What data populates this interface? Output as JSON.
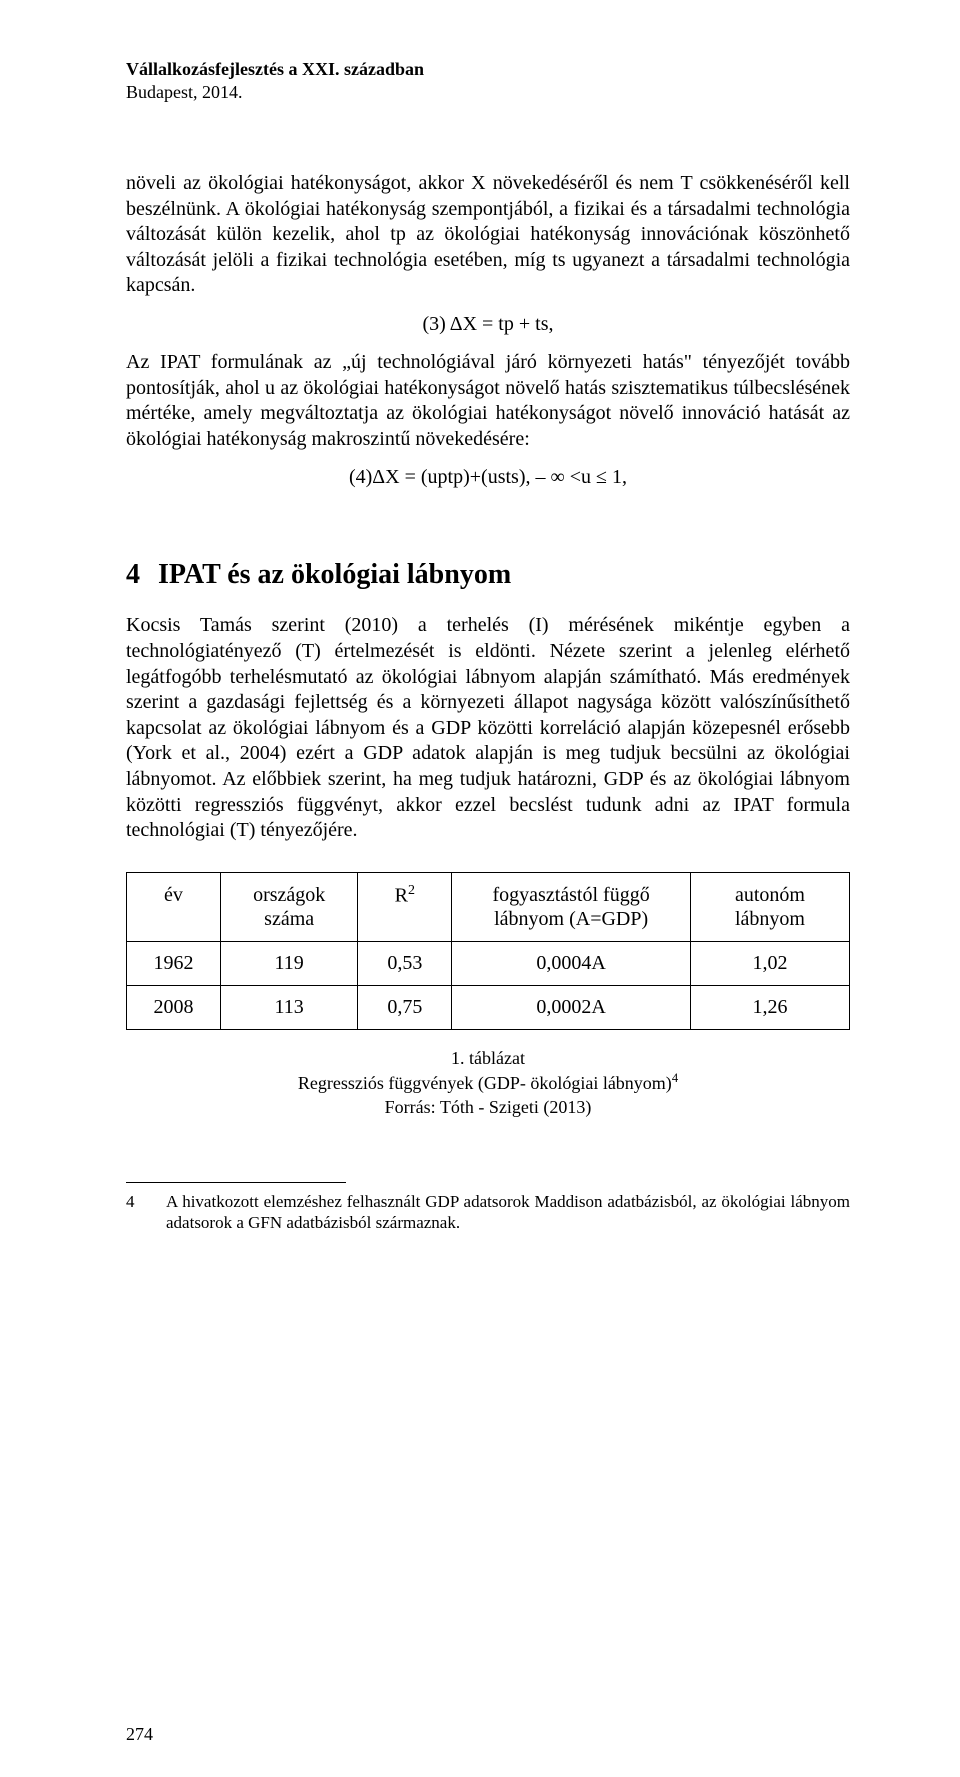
{
  "running_head": {
    "line1": "Vállalkozásfejlesztés a XXI. században",
    "line2": "Budapest, 2014."
  },
  "para1": "növeli az ökológiai hatékonyságot, akkor X növekedéséről és nem T csökkenéséről kell beszélnünk. A ökológiai hatékonyság szempontjából, a fizikai és a társadalmi technológia változását külön kezelik, ahol tp az ökológiai hatékonyság innovációnak köszönhető változását jelöli a fizikai technológia esetében, míg ts ugyanezt a társadalmi technológia kapcsán.",
  "eq3": "(3) ΔX = tp + ts,",
  "para2": "Az IPAT formulának az „új technológiával járó környezeti hatás\" tényezőjét tovább pontosítják, ahol u az ökológiai hatékonyságot növelő hatás szisztematikus túlbecslésének mértéke, amely megváltoztatja az ökológiai hatékonyságot növelő innováció hatását az ökológiai hatékonyság makroszintű növekedésére:",
  "eq4": "(4)ΔX = (uptp)+(usts), – ∞ <u ≤ 1,",
  "section": {
    "num": "4",
    "title": "IPAT és az ökológiai lábnyom"
  },
  "para3": "Kocsis Tamás szerint (2010) a terhelés (I) mérésének mikéntje egyben a technológiatényező (T) értelmezését is eldönti. Nézete szerint a jelenleg elérhető legátfogóbb terhelésmutató az ökológiai lábnyom alapján számítható. Más eredmények szerint a gazdasági fejlettség és a környezeti állapot nagysága között valószínűsíthető kapcsolat az ökológiai lábnyom és a GDP közötti korreláció alapján közepesnél erősebb (York et al., 2004) ezért a GDP adatok alapján is meg tudjuk becsülni az ökológiai lábnyomot. Az előbbiek szerint, ha meg tudjuk határozni, GDP és az ökológiai lábnyom közötti regressziós függvényt, akkor ezzel becslést tudunk adni az IPAT formula technológiai (T) tényezőjére.",
  "table": {
    "headers": {
      "c1": "év",
      "c2": "országok száma",
      "c3_html": "R<sup>2</sup>",
      "c4": "fogyasztástól függő lábnyom (A=GDP)",
      "c5": "autonóm lábnyom"
    },
    "rows": [
      {
        "c1": "1962",
        "c2": "119",
        "c3": "0,53",
        "c4": "0,0004A",
        "c5": "1,02"
      },
      {
        "c1": "2008",
        "c2": "113",
        "c3": "0,75",
        "c4": "0,0002A",
        "c5": "1,26"
      }
    ],
    "col_widths": [
      "13%",
      "19%",
      "13%",
      "33%",
      "22%"
    ]
  },
  "caption": {
    "line1_html": "1. táblázat",
    "line2_html": "Regressziós függvények (GDP- ökológiai lábnyom)<sup>4</sup>",
    "line3": "Forrás: Tóth - Szigeti (2013)"
  },
  "footnote": {
    "num": "4",
    "text": "A hivatkozott elemzéshez felhasznált GDP adatsorok Maddison adatbázisból, az ökológiai lábnyom adatsorok a GFN adatbázisból származnak."
  },
  "pagenum": "274",
  "colors": {
    "text": "#000000",
    "background": "#ffffff",
    "border": "#000000"
  },
  "fonts": {
    "body_family": "Times New Roman",
    "body_size_pt": 12,
    "h2_size_pt": 16,
    "caption_size_pt": 11
  }
}
